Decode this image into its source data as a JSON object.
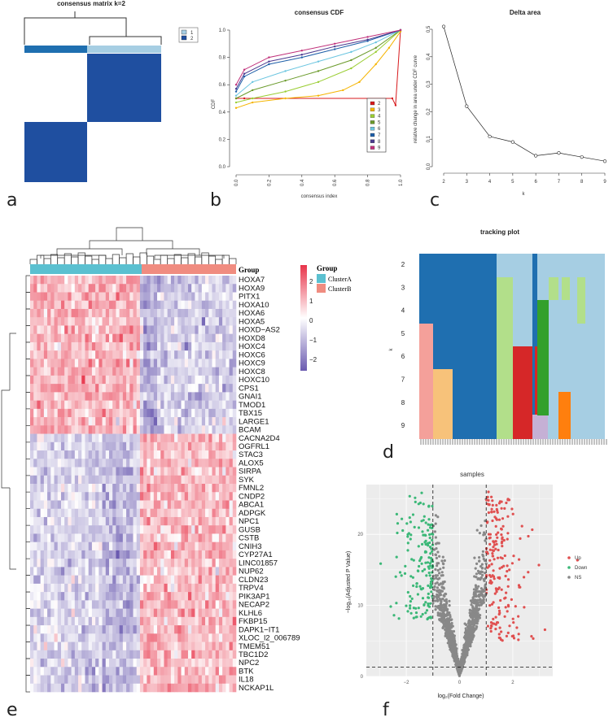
{
  "panels": {
    "a": {
      "letter": "a",
      "title": "consensus matrix k=2",
      "legend": [
        "1",
        "2"
      ],
      "colors": {
        "c1": "#a6cee3",
        "c2": "#1f4fa0"
      }
    },
    "b": {
      "letter": "b"
    },
    "c": {
      "letter": "c"
    },
    "d": {
      "letter": "d"
    },
    "e": {
      "letter": "e"
    },
    "f": {
      "letter": "f"
    }
  },
  "chart_data": [
    {
      "id": "consensus-cdf",
      "type": "line",
      "title": "consensus CDF",
      "xlabel": "consensus index",
      "ylabel": "CDF",
      "xlim": [
        0,
        1
      ],
      "ylim": [
        0,
        1
      ],
      "xticks": [
        "0.0",
        "0.2",
        "0.4",
        "0.6",
        "0.8",
        "1.0"
      ],
      "yticks": [
        "0.0",
        "0.2",
        "0.4",
        "0.6",
        "0.8",
        "1.0"
      ],
      "series": [
        {
          "name": "2",
          "color": "#d7191c",
          "x": [
            0,
            0.05,
            0.95,
            0.97,
            1.0
          ],
          "y": [
            0.5,
            0.5,
            0.5,
            0.45,
            1.0
          ]
        },
        {
          "name": "3",
          "color": "#f5b400",
          "x": [
            0,
            0.1,
            0.3,
            0.5,
            0.65,
            0.75,
            0.85,
            0.93,
            1.0
          ],
          "y": [
            0.43,
            0.47,
            0.5,
            0.52,
            0.56,
            0.62,
            0.75,
            0.87,
            0.99
          ]
        },
        {
          "name": "4",
          "color": "#9acd32",
          "x": [
            0,
            0.1,
            0.3,
            0.5,
            0.7,
            0.85,
            1.0
          ],
          "y": [
            0.47,
            0.5,
            0.55,
            0.62,
            0.72,
            0.84,
            1.0
          ]
        },
        {
          "name": "5",
          "color": "#6a9a2a",
          "x": [
            0,
            0.1,
            0.3,
            0.5,
            0.7,
            0.85,
            1.0
          ],
          "y": [
            0.5,
            0.56,
            0.63,
            0.7,
            0.78,
            0.87,
            1.0
          ]
        },
        {
          "name": "6",
          "color": "#6bc5e0",
          "x": [
            0,
            0.1,
            0.3,
            0.5,
            0.7,
            0.85,
            1.0
          ],
          "y": [
            0.52,
            0.62,
            0.7,
            0.77,
            0.84,
            0.91,
            1.0
          ]
        },
        {
          "name": "7",
          "color": "#1e5fa8",
          "x": [
            0,
            0.05,
            0.2,
            0.4,
            0.6,
            0.8,
            1.0
          ],
          "y": [
            0.55,
            0.66,
            0.75,
            0.8,
            0.86,
            0.92,
            1.0
          ]
        },
        {
          "name": "8",
          "color": "#4b3b8f",
          "x": [
            0,
            0.05,
            0.2,
            0.4,
            0.6,
            0.8,
            1.0
          ],
          "y": [
            0.57,
            0.68,
            0.77,
            0.82,
            0.88,
            0.93,
            1.0
          ]
        },
        {
          "name": "9",
          "color": "#c0307a",
          "x": [
            0,
            0.05,
            0.2,
            0.4,
            0.6,
            0.8,
            1.0
          ],
          "y": [
            0.6,
            0.71,
            0.8,
            0.85,
            0.9,
            0.95,
            1.0
          ]
        }
      ],
      "legend": [
        "2",
        "3",
        "4",
        "5",
        "6",
        "7",
        "8",
        "9"
      ]
    },
    {
      "id": "delta-area",
      "type": "line",
      "title": "Delta area",
      "xlabel": "k",
      "ylabel": "relative change in area under CDF curve",
      "xlim": [
        2,
        9
      ],
      "ylim": [
        0,
        0.5
      ],
      "xticks": [
        "2",
        "3",
        "4",
        "5",
        "6",
        "7",
        "8",
        "9"
      ],
      "yticks": [
        "0.0",
        "0.1",
        "0.2",
        "0.3",
        "0.4",
        "0.5"
      ],
      "x": [
        2,
        3,
        4,
        5,
        6,
        7,
        8,
        9
      ],
      "y": [
        0.51,
        0.22,
        0.11,
        0.09,
        0.04,
        0.05,
        0.035,
        0.02
      ]
    },
    {
      "id": "tracking-plot",
      "type": "heatmap",
      "title": "tracking plot",
      "ylabel": "k",
      "rows": [
        "2",
        "3",
        "4",
        "5",
        "6",
        "7",
        "8",
        "9"
      ]
    },
    {
      "id": "heatmap",
      "type": "heatmap",
      "legend_title": "Group",
      "groups": [
        "ClusterA",
        "ClusterB"
      ],
      "group_colors": [
        "#5bc0d0",
        "#f08c80"
      ],
      "group_label": "Group",
      "scale_ticks": [
        "2",
        "1",
        "0",
        "−1",
        "−2"
      ],
      "genes": [
        "HOXA7",
        "HOXA9",
        "PITX1",
        "HOXA10",
        "HOXA6",
        "HOXA5",
        "HOXD−AS2",
        "HOXD8",
        "HOXC4",
        "HOXC6",
        "HOXC9",
        "HOXC8",
        "HOXC10",
        "CPS1",
        "GNAI1",
        "TMOD1",
        "TBX15",
        "LARGE1",
        "BCAM",
        "CACNA2D4",
        "OGFRL1",
        "STAC3",
        "ALOX5",
        "SIRPA",
        "SYK",
        "FMNL2",
        "CNDP2",
        "ABCA1",
        "ADPGK",
        "NPC1",
        "GUSB",
        "CSTB",
        "CNIH3",
        "CYP27A1",
        "LINC01857",
        "NUP62",
        "CLDN23",
        "TRPV4",
        "PIK3AP1",
        "NECAP2",
        "KLHL6",
        "FKBP15",
        "DAPK1−IT1",
        "XLOC_l2_006789",
        "TMEM51",
        "TBC1D2",
        "NPC2",
        "BTK",
        "IL18",
        "NCKAP1L"
      ],
      "up_in_A_count": 19
    },
    {
      "id": "volcano",
      "type": "scatter",
      "title": "samples",
      "xlabel": "log₂(Fold Change)",
      "ylabel": "−log₁₀(Adjusted P Value)",
      "xlim": [
        -3.5,
        3.5
      ],
      "ylim": [
        0,
        27
      ],
      "xticks": [
        "−2",
        "0",
        "2"
      ],
      "yticks": [
        "0",
        "10",
        "20"
      ],
      "thresholds": {
        "fc": 1,
        "p_line": 1.3
      },
      "legend": [
        {
          "label": "Up",
          "color": "#e05050"
        },
        {
          "label": "Down",
          "color": "#3cb878"
        },
        {
          "label": "NS",
          "color": "#888888"
        }
      ]
    }
  ]
}
